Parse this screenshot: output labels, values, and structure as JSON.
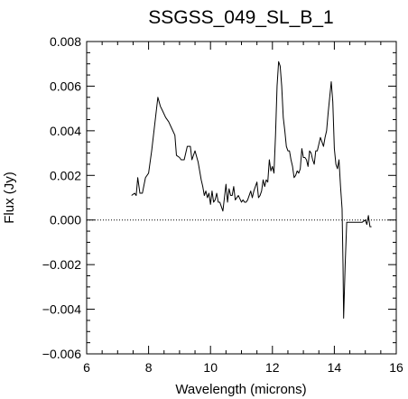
{
  "chart_data": {
    "type": "line",
    "title": "SSGSS_049_SL_B_1",
    "xlabel": "Wavelength (microns)",
    "ylabel": "Flux (Jy)",
    "xlim": [
      6,
      16
    ],
    "ylim": [
      -0.006,
      0.008
    ],
    "x_ticks": [
      "6",
      "8",
      "10",
      "12",
      "14",
      "16"
    ],
    "y_ticks": [
      "0.008",
      "0.006",
      "0.004",
      "0.002",
      "0.000",
      "−0.002",
      "−0.004",
      "−0.006"
    ],
    "zero_line": {
      "y": 0,
      "style": "dotted"
    },
    "series": [
      {
        "x": [
          7.45,
          7.55,
          7.6,
          7.65,
          7.72,
          7.8,
          7.9,
          8.0,
          8.1,
          8.2,
          8.3,
          8.38,
          8.45,
          8.55,
          8.65,
          8.75,
          8.85,
          8.9,
          9.0,
          9.05,
          9.15,
          9.25,
          9.35,
          9.4,
          9.5,
          9.6,
          9.7,
          9.75,
          9.8,
          9.85,
          9.9,
          9.95,
          10.0,
          10.05,
          10.1,
          10.15,
          10.2,
          10.25,
          10.3,
          10.4,
          10.45,
          10.5,
          10.55,
          10.6,
          10.65,
          10.7,
          10.75,
          10.8,
          10.9,
          11.0,
          11.05,
          11.1,
          11.15,
          11.2,
          11.3,
          11.35,
          11.4,
          11.5,
          11.55,
          11.6,
          11.65,
          11.7,
          11.75,
          11.8,
          11.85,
          11.9,
          11.95,
          12.0,
          12.05,
          12.1,
          12.15,
          12.2,
          12.25,
          12.3,
          12.35,
          12.4,
          12.45,
          12.5,
          12.55,
          12.6,
          12.65,
          12.7,
          12.75,
          12.8,
          12.85,
          12.9,
          12.95,
          13.0,
          13.05,
          13.1,
          13.15,
          13.2,
          13.25,
          13.3,
          13.35,
          13.4,
          13.45,
          13.5,
          13.55,
          13.6,
          13.65,
          13.7,
          13.75,
          13.8,
          13.85,
          13.9,
          13.95,
          14.0,
          14.05,
          14.1,
          14.15,
          14.2,
          14.25,
          14.28,
          14.3,
          14.35,
          14.4,
          14.45,
          14.5,
          14.6,
          14.7,
          14.8,
          14.9,
          15.0,
          15.05,
          15.1,
          15.15,
          15.2
        ],
        "y": [
          0.0011,
          0.0012,
          0.0011,
          0.0019,
          0.0012,
          0.0012,
          0.0019,
          0.0021,
          0.0031,
          0.0043,
          0.0055,
          0.0051,
          0.0049,
          0.0046,
          0.0044,
          0.0041,
          0.0038,
          0.0029,
          0.0028,
          0.0027,
          0.0027,
          0.0033,
          0.0033,
          0.0027,
          0.0031,
          0.0026,
          0.0018,
          0.0015,
          0.0011,
          0.0013,
          0.001,
          0.0012,
          0.0007,
          0.0013,
          0.0008,
          0.0009,
          0.0012,
          0.0008,
          0.0008,
          0.0004,
          0.001,
          0.0016,
          0.0008,
          0.0014,
          0.0011,
          0.0011,
          0.0015,
          0.0009,
          0.0011,
          0.0008,
          0.0009,
          0.0008,
          0.0008,
          0.0009,
          0.0013,
          0.001,
          0.0013,
          0.0017,
          0.001,
          0.0011,
          0.0013,
          0.0018,
          0.0015,
          0.0018,
          0.0017,
          0.0027,
          0.0022,
          0.0024,
          0.0021,
          0.0038,
          0.006,
          0.0071,
          0.0069,
          0.006,
          0.0046,
          0.004,
          0.0033,
          0.0031,
          0.0031,
          0.0027,
          0.0024,
          0.0019,
          0.002,
          0.0022,
          0.0021,
          0.0023,
          0.0032,
          0.0028,
          0.0028,
          0.0027,
          0.0024,
          0.0031,
          0.003,
          0.0027,
          0.0025,
          0.0031,
          0.0031,
          0.0034,
          0.0037,
          0.0035,
          0.0033,
          0.0037,
          0.004,
          0.0048,
          0.0055,
          0.0062,
          0.0053,
          0.0032,
          0.0025,
          0.0023,
          0.0027,
          0.0015,
          0.0005,
          -0.002,
          -0.0044,
          -0.002,
          -0.0001,
          -0.0001,
          -0.0001,
          -0.0001,
          -0.0001,
          -0.0001,
          -0.0001,
          0.0,
          -0.0002,
          0.0002,
          -0.0003,
          -0.0003
        ]
      }
    ]
  }
}
